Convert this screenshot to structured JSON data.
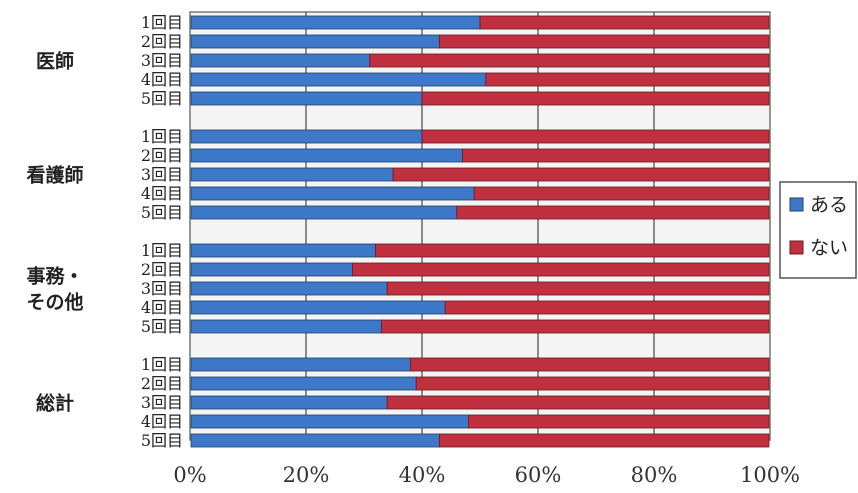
{
  "chart_data": {
    "type": "bar",
    "orientation": "horizontal",
    "stacked": "percent",
    "xlim": [
      0,
      100
    ],
    "x_ticks": [
      "0%",
      "20%",
      "40%",
      "60%",
      "80%",
      "100%"
    ],
    "grid": true,
    "legend_position": "right",
    "groups": [
      {
        "label": "医師",
        "rounds": [
          "1回目",
          "2回目",
          "3回目",
          "4回目",
          "5回目"
        ],
        "aru": [
          50,
          43,
          31,
          51,
          40
        ]
      },
      {
        "label": "看護師",
        "rounds": [
          "1回目",
          "2回目",
          "3回目",
          "4回目",
          "5回目"
        ],
        "aru": [
          40,
          47,
          35,
          49,
          46
        ]
      },
      {
        "label": "事務・\nその他",
        "rounds": [
          "1回目",
          "2回目",
          "3回目",
          "4回目",
          "5回目"
        ],
        "aru": [
          32,
          28,
          34,
          44,
          33
        ]
      },
      {
        "label": "総計",
        "rounds": [
          "1回目",
          "2回目",
          "3回目",
          "4回目",
          "5回目"
        ],
        "aru": [
          38,
          39,
          34,
          48,
          43
        ]
      }
    ],
    "series": [
      {
        "name": "ある",
        "color": "#3d79c8"
      },
      {
        "name": "ない",
        "color": "#c0303e"
      }
    ]
  }
}
